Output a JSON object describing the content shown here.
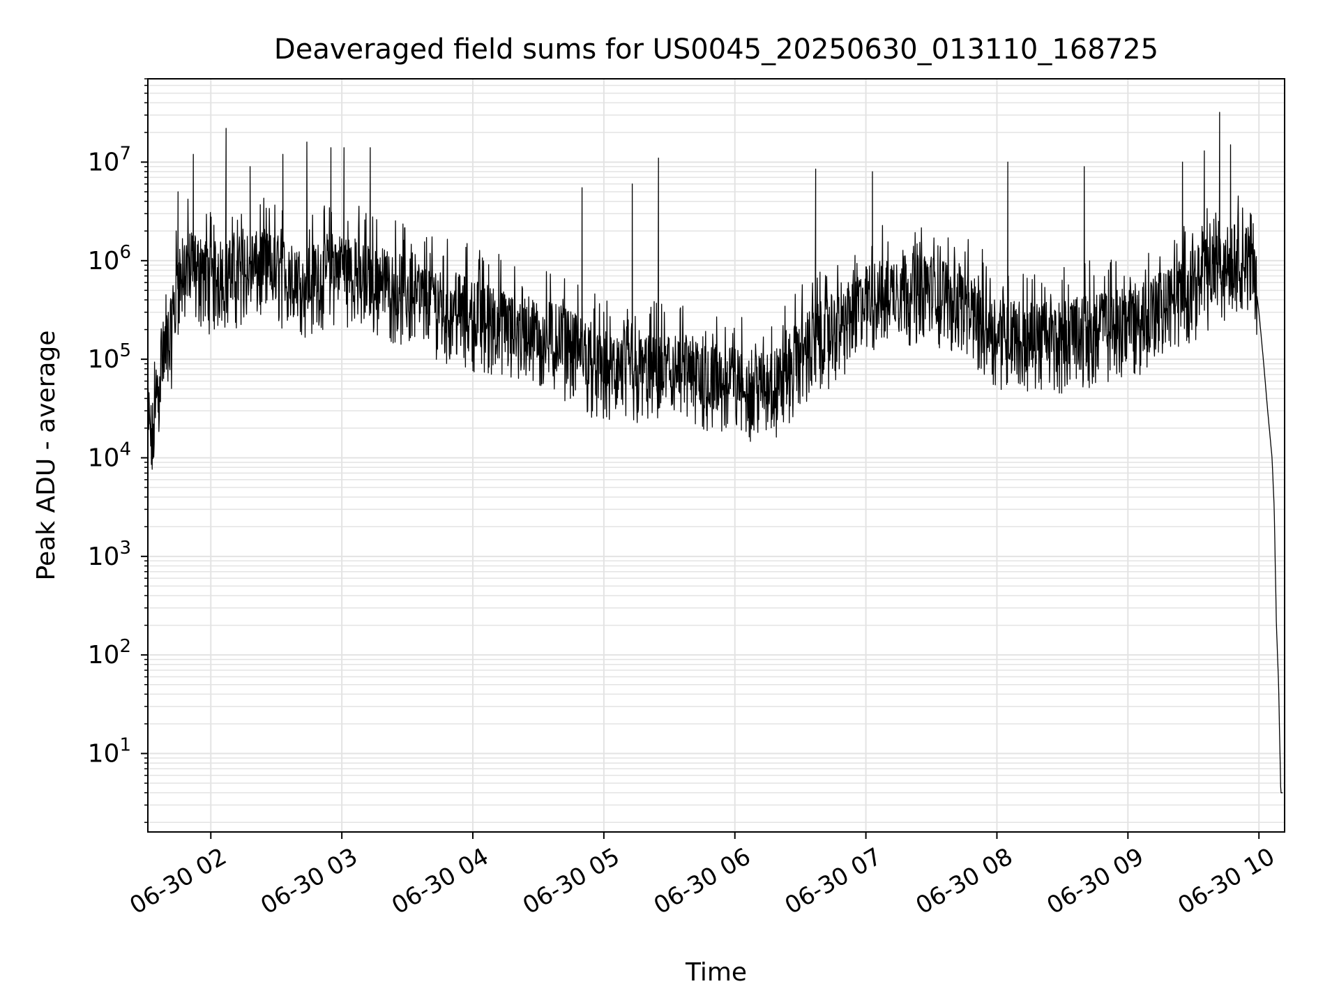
{
  "chart_data": {
    "type": "line",
    "title": "Deaveraged field sums for US0045_20250630_013110_168725",
    "xlabel": "Time",
    "ylabel": "Peak ADU - average",
    "yscale": "log",
    "grid": true,
    "xlim": [
      "06-30 01:31:10",
      "06-30 10:11:45"
    ],
    "ylim": [
      1.6,
      70000000
    ],
    "x_ticks": [
      "06-30 02",
      "06-30 03",
      "06-30 04",
      "06-30 05",
      "06-30 06",
      "06-30 07",
      "06-30 08",
      "06-30 09",
      "06-30 10"
    ],
    "y_ticks": [
      {
        "base": "10",
        "exp": "1"
      },
      {
        "base": "10",
        "exp": "2"
      },
      {
        "base": "10",
        "exp": "3"
      },
      {
        "base": "10",
        "exp": "4"
      },
      {
        "base": "10",
        "exp": "5"
      },
      {
        "base": "10",
        "exp": "6"
      },
      {
        "base": "10",
        "exp": "7"
      }
    ],
    "line_color": "#000000",
    "series": [
      {
        "x": [
          "06-30 01:31",
          "06-30 01:33",
          "06-30 01:35",
          "06-30 01:37",
          "06-30 01:39",
          "06-30 01:42",
          "06-30 01:45",
          "06-30 01:50",
          "06-30 02:00",
          "06-30 02:10",
          "06-30 02:20",
          "06-30 02:30",
          "06-30 02:40",
          "06-30 02:50",
          "06-30 03:00",
          "06-30 03:10",
          "06-30 03:20",
          "06-30 03:30",
          "06-30 03:40",
          "06-30 03:50",
          "06-30 04:00",
          "06-30 04:10",
          "06-30 04:20",
          "06-30 04:30",
          "06-30 04:40",
          "06-30 04:50",
          "06-30 05:00",
          "06-30 05:10",
          "06-30 05:20",
          "06-30 05:30",
          "06-30 05:40",
          "06-30 05:50",
          "06-30 06:00",
          "06-30 06:10",
          "06-30 06:20",
          "06-30 06:30",
          "06-30 06:40",
          "06-30 06:50",
          "06-30 07:00",
          "06-30 07:10",
          "06-30 07:20",
          "06-30 07:30",
          "06-30 07:40",
          "06-30 07:50",
          "06-30 08:00",
          "06-30 08:10",
          "06-30 08:20",
          "06-30 08:30",
          "06-30 08:40",
          "06-30 08:50",
          "06-30 09:00",
          "06-30 09:10",
          "06-30 09:20",
          "06-30 09:30",
          "06-30 09:40",
          "06-30 09:50",
          "06-30 09:55",
          "06-30 09:58",
          "06-30 10:00",
          "06-30 10:02",
          "06-30 10:04",
          "06-30 10:06",
          "06-30 10:07",
          "06-30 10:08",
          "06-30 10:09",
          "06-30 10:10",
          "06-30 10:11"
        ],
        "y": [
          30000,
          15000,
          40000,
          100000,
          120000,
          200000,
          700000,
          900000,
          700000,
          800000,
          900000,
          850000,
          600000,
          700000,
          900000,
          700000,
          600000,
          500000,
          400000,
          350000,
          300000,
          250000,
          200000,
          180000,
          160000,
          120000,
          80000,
          70000,
          80000,
          75000,
          70000,
          65000,
          60000,
          55000,
          60000,
          120000,
          180000,
          250000,
          400000,
          500000,
          550000,
          500000,
          450000,
          300000,
          200000,
          180000,
          170000,
          180000,
          200000,
          220000,
          250000,
          300000,
          400000,
          600000,
          900000,
          1100000,
          1000000,
          700000,
          300000,
          100000,
          30000,
          10000,
          3000,
          200,
          50,
          4,
          4
        ],
        "spikes": [
          {
            "x": "06-30 01:45",
            "y": 5000000
          },
          {
            "x": "06-30 01:52",
            "y": 12000000
          },
          {
            "x": "06-30 02:07",
            "y": 22000000
          },
          {
            "x": "06-30 02:18",
            "y": 9000000
          },
          {
            "x": "06-30 02:33",
            "y": 12000000
          },
          {
            "x": "06-30 02:44",
            "y": 16000000
          },
          {
            "x": "06-30 02:55",
            "y": 14000000
          },
          {
            "x": "06-30 03:01",
            "y": 14000000
          },
          {
            "x": "06-30 03:13",
            "y": 14000000
          },
          {
            "x": "06-30 04:50",
            "y": 5500000
          },
          {
            "x": "06-30 05:13",
            "y": 6000000
          },
          {
            "x": "06-30 05:25",
            "y": 11000000
          },
          {
            "x": "06-30 06:37",
            "y": 8500000
          },
          {
            "x": "06-30 07:03",
            "y": 8000000
          },
          {
            "x": "06-30 08:05",
            "y": 10000000
          },
          {
            "x": "06-30 08:40",
            "y": 9000000
          },
          {
            "x": "06-30 09:25",
            "y": 10000000
          },
          {
            "x": "06-30 09:35",
            "y": 13000000
          },
          {
            "x": "06-30 09:42",
            "y": 32000000
          },
          {
            "x": "06-30 09:47",
            "y": 15000000
          }
        ]
      }
    ]
  }
}
